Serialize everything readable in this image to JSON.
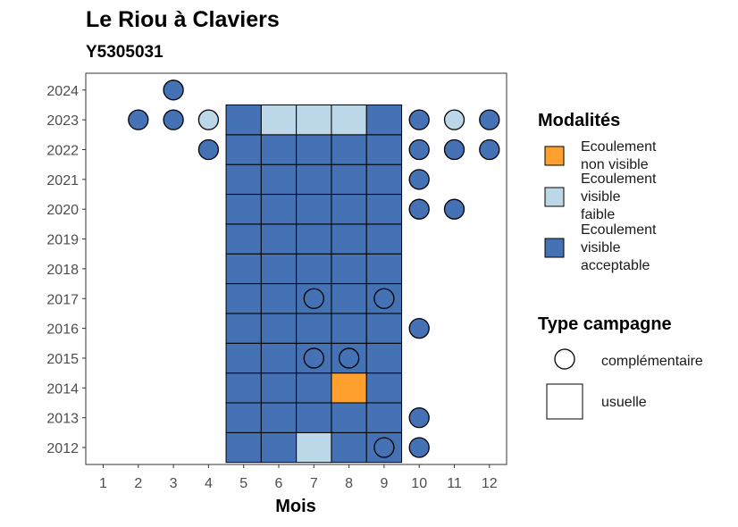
{
  "chart_data": {
    "type": "heatmap",
    "title": "Le Riou à Claviers",
    "subtitle": "Y5305031",
    "xlabel": "Mois",
    "ylabel": "",
    "x_categories": [
      1,
      2,
      3,
      4,
      5,
      6,
      7,
      8,
      9,
      10,
      11,
      12
    ],
    "y_categories": [
      2012,
      2013,
      2014,
      2015,
      2016,
      2017,
      2018,
      2019,
      2020,
      2021,
      2022,
      2023,
      2024
    ],
    "colors": {
      "non_visible": "#FF9F2E",
      "faible": "#BCD7E8",
      "acceptable": "#4472B4"
    },
    "legend_modalites": {
      "title": "Modalités",
      "items": [
        {
          "key": "non_visible",
          "lines": [
            "Ecoulement",
            "non visible"
          ]
        },
        {
          "key": "faible",
          "lines": [
            "Ecoulement",
            "visible",
            "faible"
          ]
        },
        {
          "key": "acceptable",
          "lines": [
            "Ecoulement",
            "visible",
            "acceptable"
          ]
        }
      ]
    },
    "legend_campagne": {
      "title": "Type campagne",
      "items": [
        {
          "shape": "circle",
          "label": "complémentaire"
        },
        {
          "shape": "square",
          "label": "usuelle"
        }
      ]
    },
    "usuelle": [
      {
        "year": 2012,
        "values": [
          "acceptable",
          "acceptable",
          "faible",
          "acceptable",
          "acceptable"
        ]
      },
      {
        "year": 2013,
        "values": [
          "acceptable",
          "acceptable",
          "acceptable",
          "acceptable",
          "acceptable"
        ]
      },
      {
        "year": 2014,
        "values": [
          "acceptable",
          "acceptable",
          "acceptable",
          "non_visible",
          "acceptable"
        ]
      },
      {
        "year": 2015,
        "values": [
          "acceptable",
          "acceptable",
          "acceptable",
          "acceptable",
          "acceptable"
        ]
      },
      {
        "year": 2016,
        "values": [
          "acceptable",
          "acceptable",
          "acceptable",
          "acceptable",
          "acceptable"
        ]
      },
      {
        "year": 2017,
        "values": [
          "acceptable",
          "acceptable",
          "acceptable",
          "acceptable",
          "acceptable"
        ]
      },
      {
        "year": 2018,
        "values": [
          "acceptable",
          "acceptable",
          "acceptable",
          "acceptable",
          "acceptable"
        ]
      },
      {
        "year": 2019,
        "values": [
          "acceptable",
          "acceptable",
          "acceptable",
          "acceptable",
          "acceptable"
        ]
      },
      {
        "year": 2020,
        "values": [
          "acceptable",
          "acceptable",
          "acceptable",
          "acceptable",
          "acceptable"
        ]
      },
      {
        "year": 2021,
        "values": [
          "acceptable",
          "acceptable",
          "acceptable",
          "acceptable",
          "acceptable"
        ]
      },
      {
        "year": 2022,
        "values": [
          "acceptable",
          "acceptable",
          "acceptable",
          "acceptable",
          "acceptable"
        ]
      },
      {
        "year": 2023,
        "values": [
          "acceptable",
          "faible",
          "faible",
          "faible",
          "acceptable"
        ]
      }
    ],
    "usuelle_months": [
      5,
      6,
      7,
      8,
      9
    ],
    "complementaire": [
      {
        "year": 2024,
        "month": 3,
        "value": "acceptable"
      },
      {
        "year": 2023,
        "month": 2,
        "value": "acceptable"
      },
      {
        "year": 2023,
        "month": 3,
        "value": "acceptable"
      },
      {
        "year": 2023,
        "month": 4,
        "value": "faible"
      },
      {
        "year": 2023,
        "month": 10,
        "value": "acceptable"
      },
      {
        "year": 2023,
        "month": 11,
        "value": "faible"
      },
      {
        "year": 2023,
        "month": 12,
        "value": "acceptable"
      },
      {
        "year": 2022,
        "month": 4,
        "value": "acceptable"
      },
      {
        "year": 2022,
        "month": 10,
        "value": "acceptable"
      },
      {
        "year": 2022,
        "month": 11,
        "value": "acceptable"
      },
      {
        "year": 2022,
        "month": 12,
        "value": "acceptable"
      },
      {
        "year": 2021,
        "month": 10,
        "value": "acceptable"
      },
      {
        "year": 2020,
        "month": 10,
        "value": "acceptable"
      },
      {
        "year": 2020,
        "month": 11,
        "value": "acceptable"
      },
      {
        "year": 2017,
        "month": 7,
        "value": "acceptable"
      },
      {
        "year": 2017,
        "month": 9,
        "value": "acceptable"
      },
      {
        "year": 2016,
        "month": 10,
        "value": "acceptable"
      },
      {
        "year": 2015,
        "month": 7,
        "value": "acceptable"
      },
      {
        "year": 2015,
        "month": 8,
        "value": "acceptable"
      },
      {
        "year": 2013,
        "month": 10,
        "value": "acceptable"
      },
      {
        "year": 2012,
        "month": 9,
        "value": "acceptable"
      },
      {
        "year": 2012,
        "month": 10,
        "value": "acceptable"
      }
    ]
  }
}
